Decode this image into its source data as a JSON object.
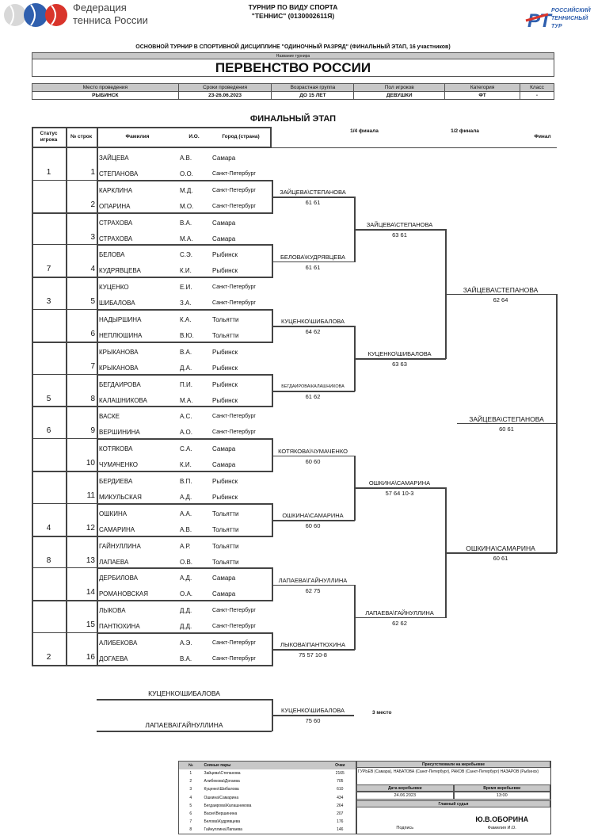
{
  "header": {
    "federation_line1": "Федерация",
    "federation_line2": "тенниса России",
    "title_line1": "ТУРНИР ПО ВИДУ СПОРТА",
    "title_line2": "\"ТЕННИС\" (0130002611Я)",
    "rtt_logo_text": "РОССИЙСКИЙ ТЕННИСНЫЙ ТУР"
  },
  "subtitle": "ОСНОВНОЙ ТУРНИР В СПОРТИВНОЙ ДИСЦИПЛИНЕ \"ОДИНОЧНЫЙ РАЗРЯД\" (ФИНАЛЬНЫЙ ЭТАП, 16 участников)",
  "tournament": {
    "label": "Название турнира",
    "name": "ПЕРВЕНСТВО РОССИИ"
  },
  "info": {
    "headers": [
      "Место проведения",
      "Сроки проведения",
      "Возрастная группа",
      "Пол игроков",
      "Категория",
      "Класс"
    ],
    "values": [
      "РЫБИНСК",
      "23-26.06.2023",
      "ДО 15 ЛЕТ",
      "ДЕВУШКИ",
      "ФТ",
      "-"
    ]
  },
  "stage": "ФИНАЛЬНЫЙ ЭТАП",
  "columns": {
    "status": "Статус игрока",
    "line": "№ строк",
    "surname": "Фамилия",
    "initials": "И.О.",
    "city": "Город (страна)",
    "qf": "1/4 финала",
    "sf": "1/2 финала",
    "final": "Финал"
  },
  "pairs": [
    {
      "status": "1",
      "line": "1",
      "players": [
        [
          "ЗАЙЦЕВА",
          "А.В.",
          "Самара"
        ],
        [
          "СТЕПАНОВА",
          "О.О.",
          "Санкт-Петербург"
        ]
      ]
    },
    {
      "status": "",
      "line": "2",
      "players": [
        [
          "КАРКЛИНА",
          "М.Д.",
          "Санкт-Петербург"
        ],
        [
          "ОПАРИНА",
          "М.О.",
          "Санкт-Петербург"
        ]
      ]
    },
    {
      "status": "",
      "line": "3",
      "players": [
        [
          "СТРАХОВА",
          "В.А.",
          "Самара"
        ],
        [
          "СТРАХОВА",
          "М.А.",
          "Самара"
        ]
      ]
    },
    {
      "status": "7",
      "line": "4",
      "players": [
        [
          "БЕЛОВА",
          "С.Э.",
          "Рыбинск"
        ],
        [
          "КУДРЯВЦЕВА",
          "К.И.",
          "Рыбинск"
        ]
      ]
    },
    {
      "status": "3",
      "line": "5",
      "players": [
        [
          "КУЦЕНКО",
          "Е.И.",
          "Санкт-Петербург"
        ],
        [
          "ШИБАЛОВА",
          "З.А.",
          "Санкт-Петербург"
        ]
      ]
    },
    {
      "status": "",
      "line": "6",
      "players": [
        [
          "НАДЫРШИНА",
          "К.А.",
          "Тольятти"
        ],
        [
          "НЕПЛЮШИНА",
          "В.Ю.",
          "Тольятти"
        ]
      ]
    },
    {
      "status": "",
      "line": "7",
      "players": [
        [
          "КРЫКАНОВА",
          "В.А.",
          "Рыбинск"
        ],
        [
          "КРЫКАНОВА",
          "Д.А.",
          "Рыбинск"
        ]
      ]
    },
    {
      "status": "5",
      "line": "8",
      "players": [
        [
          "БЕГДАИРОВА",
          "П.И.",
          "Рыбинск"
        ],
        [
          "КАЛАШНИКОВА",
          "М.А.",
          "Рыбинск"
        ]
      ]
    },
    {
      "status": "6",
      "line": "9",
      "players": [
        [
          "ВАСКЕ",
          "А.С.",
          "Санкт-Петербург"
        ],
        [
          "ВЕРШИНИНА",
          "А.О.",
          "Санкт-Петербург"
        ]
      ]
    },
    {
      "status": "",
      "line": "10",
      "players": [
        [
          "КОТЯКОВА",
          "С.А.",
          "Самара"
        ],
        [
          "ЧУМАЧЕНКО",
          "К.И.",
          "Самара"
        ]
      ]
    },
    {
      "status": "",
      "line": "11",
      "players": [
        [
          "БЕРДИЕВА",
          "В.П.",
          "Рыбинск"
        ],
        [
          "МИКУЛЬСКАЯ",
          "А.Д.",
          "Рыбинск"
        ]
      ]
    },
    {
      "status": "4",
      "line": "12",
      "players": [
        [
          "ОШКИНА",
          "А.А.",
          "Тольятти"
        ],
        [
          "САМАРИНА",
          "А.В.",
          "Тольятти"
        ]
      ]
    },
    {
      "status": "8",
      "line": "13",
      "players": [
        [
          "ГАЙНУЛЛИНА",
          "А.Р.",
          "Тольятти"
        ],
        [
          "ЛАПАЕВА",
          "О.В.",
          "Тольятти"
        ]
      ]
    },
    {
      "status": "",
      "line": "14",
      "players": [
        [
          "ДЕРБИЛОВА",
          "А.Д.",
          "Самара"
        ],
        [
          "РОМАНОВСКАЯ",
          "О.А.",
          "Самара"
        ]
      ]
    },
    {
      "status": "",
      "line": "15",
      "players": [
        [
          "ЛЫКОВА",
          "Д.Д.",
          "Санкт-Петербург"
        ],
        [
          "ПАНТЮХИНА",
          "Д.Д.",
          "Санкт-Петербург"
        ]
      ]
    },
    {
      "status": "2",
      "line": "16",
      "players": [
        [
          "АЛИБЕКОВА",
          "А.Э.",
          "Санкт-Петербург"
        ],
        [
          "ДОГАЕВА",
          "В.А.",
          "Санкт-Петербург"
        ]
      ]
    }
  ],
  "rounds": [
    [
      {
        "w": "ЗАЙЦЕВА\\СТЕПАНОВА",
        "s": "61 61"
      },
      {
        "w": "БЕЛОВА\\КУДРЯВЦЕВА",
        "s": "61 61"
      },
      {
        "w": "КУЦЕНКО\\ШИБАЛОВА",
        "s": "64 62"
      },
      {
        "w": "БЕГДАИРОВА\\КАЛАШНИКОВА",
        "s": "61 62"
      },
      {
        "w": "КОТЯКОВА\\ЧУМАЧЕНКО",
        "s": "60 60"
      },
      {
        "w": "ОШКИНА\\САМАРИНА",
        "s": "60 60"
      },
      {
        "w": "ЛАПАЕВА\\ГАЙНУЛЛИНА",
        "s": "62 75"
      },
      {
        "w": "ЛЫКОВА\\ПАНТЮХИНА",
        "s": "75 57 10-8"
      }
    ],
    [
      {
        "w": "ЗАЙЦЕВА\\СТЕПАНОВА",
        "s": "63 61"
      },
      {
        "w": "КУЦЕНКО\\ШИБАЛОВА",
        "s": "63 63"
      },
      {
        "w": "ОШКИНА\\САМАРИНА",
        "s": "57 64 10-3"
      },
      {
        "w": "ЛАПАЕВА\\ГАЙНУЛЛИНА",
        "s": "62 62"
      }
    ],
    [
      {
        "w": "ЗАЙЦЕВА\\СТЕПАНОВА",
        "s": "62 64"
      },
      {
        "w": "ОШКИНА\\САМАРИНА",
        "s": "60 61"
      }
    ],
    [
      {
        "w": "ЗАЙЦЕВА\\СТЕПАНОВА",
        "s": "60 61"
      }
    ]
  ],
  "third_place": {
    "p1": "КУЦЕНКО\\ШИБАЛОВА",
    "p2": "ЛАПАЕВА\\ГАЙНУЛЛИНА",
    "winner": "КУЦЕНКО\\ШИБАЛОВА",
    "score": "75 60",
    "label": "3 место"
  },
  "seeds": {
    "headers": [
      "№",
      "Сеяные пары",
      "Очки"
    ],
    "rows": [
      [
        "1",
        "Зайцева\\Степанова",
        "2165"
      ],
      [
        "2",
        "Алибекова\\Догаева",
        "705"
      ],
      [
        "3",
        "Куценко\\Шибалова",
        "610"
      ],
      [
        "4",
        "Ошкина\\Самарина",
        "434"
      ],
      [
        "5",
        "Бегдаирова\\Калашникова",
        "264"
      ],
      [
        "6",
        "Васке\\Вершинина",
        "207"
      ],
      [
        "7",
        "Белова\\Кудрявцева",
        "176"
      ],
      [
        "8",
        "Гайнуллина\\Лапаева",
        "146"
      ]
    ]
  },
  "draw": {
    "present_label": "Присутствовали на жеребьевке",
    "present": "ГУРЬЕВ (Самара), НАБАТОВА (Санкт-Петербург), РАКОВ (Санкт-Петербург) НАЗАРОВ (Рыбинск)",
    "date_label": "Дата жеребьевки",
    "date": "24.06.2023",
    "time_label": "Время жеребьевки",
    "time": "13:00",
    "referee_label": "Главный судья",
    "signature_label": "Подпись",
    "referee": "Ю.В.ОБОРИНА",
    "name_label": "Фамилия И.О."
  }
}
